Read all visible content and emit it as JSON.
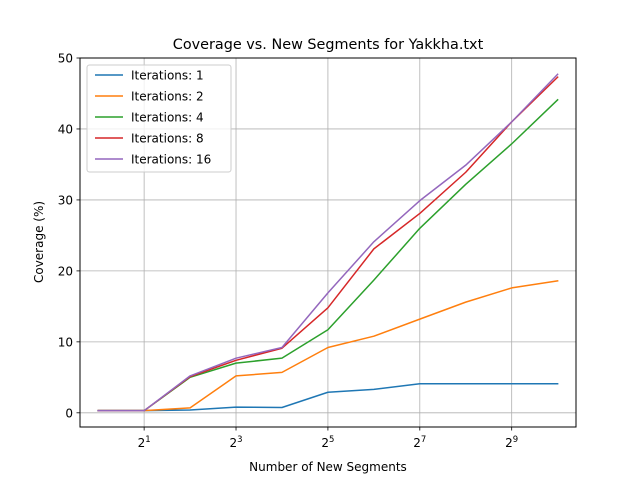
{
  "chart_data": {
    "type": "line",
    "title": "Coverage vs. New Segments for Yakkha.txt",
    "xlabel": "Number of New Segments",
    "ylabel": "Coverage (%)",
    "xscale": "log2",
    "xlim": [
      0.76,
      1351
    ],
    "ylim": [
      -2,
      50
    ],
    "grid": true,
    "legend_position": "top-left",
    "x": [
      1,
      2,
      4,
      8,
      16,
      32,
      64,
      128,
      256,
      512,
      1024
    ],
    "x_ticks": [
      {
        "value": 2,
        "base": "2",
        "exp": "1"
      },
      {
        "value": 8,
        "base": "2",
        "exp": "3"
      },
      {
        "value": 32,
        "base": "2",
        "exp": "5"
      },
      {
        "value": 128,
        "base": "2",
        "exp": "7"
      },
      {
        "value": 512,
        "base": "2",
        "exp": "9"
      }
    ],
    "y_ticks": [
      "0",
      "10",
      "20",
      "30",
      "40",
      "50"
    ],
    "series": [
      {
        "name": "Iterations: 1",
        "color": "#1f77b4",
        "values": [
          0.3,
          0.3,
          0.4,
          0.8,
          0.75,
          2.9,
          3.3,
          4.1,
          4.1,
          4.1,
          4.1
        ]
      },
      {
        "name": "Iterations: 2",
        "color": "#ff7f0e",
        "values": [
          0.3,
          0.3,
          0.7,
          5.2,
          5.7,
          9.2,
          10.8,
          13.2,
          15.6,
          17.6,
          18.6
        ]
      },
      {
        "name": "Iterations: 4",
        "color": "#2ca02c",
        "values": [
          0.3,
          0.3,
          5.0,
          7.0,
          7.7,
          11.7,
          18.7,
          26.0,
          32.2,
          37.9,
          44.1
        ]
      },
      {
        "name": "Iterations: 8",
        "color": "#d62728",
        "values": [
          0.3,
          0.3,
          5.1,
          7.4,
          9.1,
          14.8,
          23.1,
          28.1,
          33.9,
          41.0,
          47.3
        ]
      },
      {
        "name": "Iterations: 16",
        "color": "#9467bd",
        "values": [
          0.3,
          0.3,
          5.2,
          7.7,
          9.2,
          16.9,
          24.1,
          29.9,
          34.9,
          41.0,
          47.7
        ]
      }
    ]
  }
}
